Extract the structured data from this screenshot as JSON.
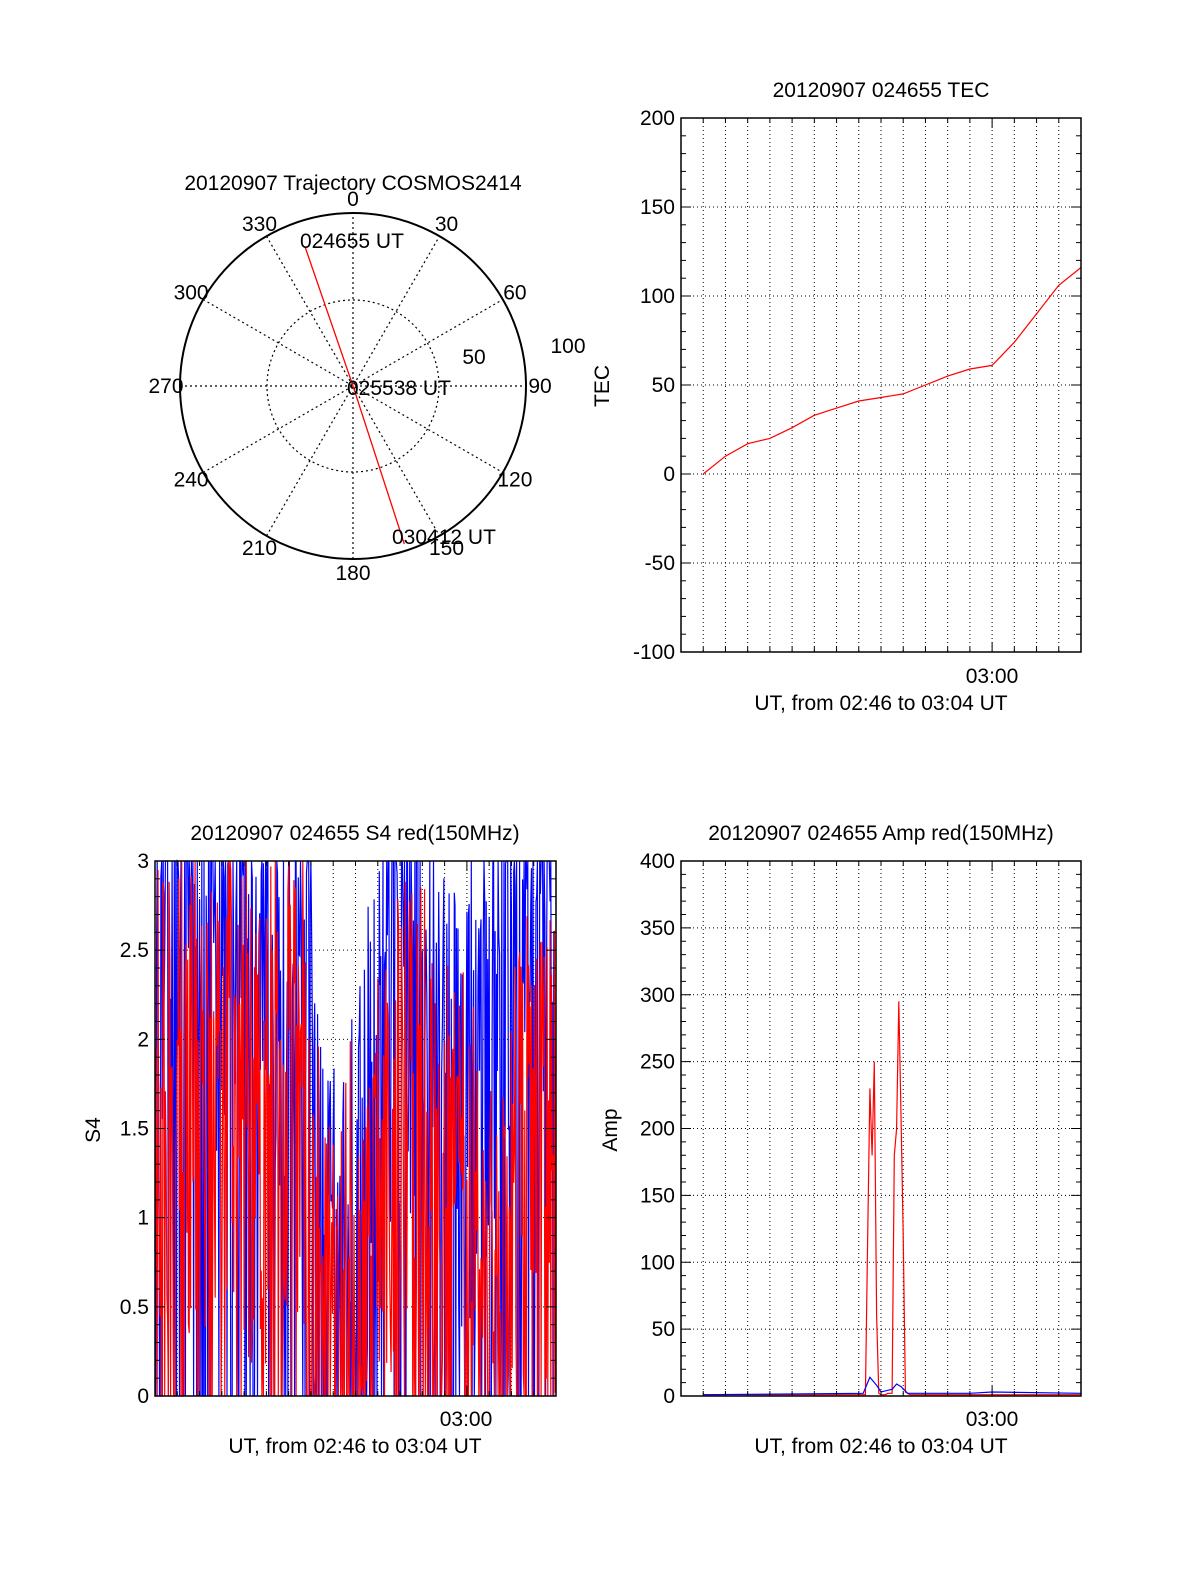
{
  "colors": {
    "red": "#ff0000",
    "blue": "#0000ff",
    "axis": "#000000",
    "grid": "#000000"
  },
  "chart_data": [
    {
      "type": "polar",
      "title": "20120907 Trajectory COSMOS2414",
      "azimuth_labels": [
        "0",
        "30",
        "60",
        "90",
        "120",
        "150",
        "180",
        "210",
        "240",
        "270",
        "300",
        "330"
      ],
      "radial_labels": [
        "50",
        "100"
      ],
      "track": [
        {
          "label": "024655 UT",
          "azimuth": 341,
          "radius": 85
        },
        {
          "label": "025538 UT",
          "azimuth": 0,
          "radius": 0
        },
        {
          "label": "030412 UT",
          "azimuth": 162,
          "radius": 96
        }
      ]
    },
    {
      "type": "line",
      "title": "20120907 024655 TEC",
      "xlabel": "UT, from 02:46 to 03:04 UT",
      "ylabel": "TEC",
      "xlim_minutes_after_0246": [
        0,
        18
      ],
      "x_tick_labels": [
        "03:00"
      ],
      "ylim": [
        -100,
        200
      ],
      "y_ticks": [
        "200",
        "150",
        "100",
        "50",
        "0",
        "-50",
        "-100"
      ],
      "grid": true,
      "series": [
        {
          "color": "red",
          "x": [
            1,
            2,
            3,
            4,
            5,
            6,
            7,
            8,
            9,
            10,
            11,
            12,
            13,
            14,
            15,
            16,
            17,
            18
          ],
          "y": [
            0,
            10,
            17,
            20,
            26,
            33,
            37,
            41,
            43,
            45,
            50,
            55,
            59,
            61,
            74,
            90,
            106,
            116
          ]
        }
      ]
    },
    {
      "type": "line",
      "title": "20120907 024655 S4 red(150MHz)",
      "xlabel": "UT, from 02:46 to 03:04 UT",
      "ylabel": "S4",
      "xlim_minutes_after_0246": [
        0,
        18
      ],
      "x_tick_labels": [
        "03:00"
      ],
      "ylim": [
        0,
        3
      ],
      "y_ticks": [
        "3",
        "2.5",
        "2",
        "1.5",
        "1",
        "0.5",
        "0"
      ],
      "grid": true,
      "series": [
        {
          "color": "blue",
          "x": [
            0,
            1,
            2,
            3,
            4,
            5,
            6,
            7,
            7.5,
            8,
            8.5,
            9,
            10,
            11,
            12,
            13,
            14,
            15,
            16,
            17,
            18
          ],
          "y": [
            2.8,
            2.7,
            2.6,
            2.6,
            2.5,
            2.5,
            2.3,
            1.8,
            0.9,
            0.25,
            0.4,
            0.6,
            1.8,
            2.4,
            2.2,
            1.6,
            1.5,
            2.0,
            2.5,
            2.4,
            2.6
          ]
        },
        {
          "color": "red",
          "x": [
            0,
            1,
            2,
            3,
            4,
            5,
            6,
            7,
            7.5,
            8,
            8.5,
            9,
            10,
            11,
            12,
            13,
            14,
            15,
            16,
            17,
            18
          ],
          "y": [
            1.8,
            1.5,
            1.6,
            1.5,
            1.5,
            1.5,
            1.7,
            1.2,
            0.8,
            0.2,
            0.4,
            0.3,
            0.7,
            1.5,
            1.6,
            1.0,
            0.7,
            0.6,
            0.9,
            1.2,
            1.3
          ]
        }
      ]
    },
    {
      "type": "line",
      "title": "20120907 024655 Amp red(150MHz)",
      "xlabel": "UT, from 02:46 to 03:04 UT",
      "ylabel": "Amp",
      "xlim_minutes_after_0246": [
        0,
        18
      ],
      "x_tick_labels": [
        "03:00"
      ],
      "ylim": [
        0,
        400
      ],
      "y_ticks": [
        "400",
        "350",
        "300",
        "250",
        "200",
        "150",
        "100",
        "50",
        "0"
      ],
      "grid": true,
      "series": [
        {
          "color": "red",
          "x": [
            1,
            8.3,
            8.4,
            8.5,
            8.6,
            8.7,
            8.8,
            8.9,
            9.0,
            9.1,
            9.2,
            9.3,
            9.4,
            9.5,
            9.6,
            9.7,
            9.8,
            9.9,
            10.0,
            10.1,
            10.3,
            18
          ],
          "y": [
            1,
            1,
            120,
            230,
            180,
            250,
            60,
            2,
            1,
            1,
            1,
            2,
            2,
            2,
            180,
            200,
            295,
            210,
            120,
            3,
            1,
            1
          ]
        },
        {
          "color": "blue",
          "x": [
            1,
            8.2,
            8.5,
            8.8,
            9.0,
            9.5,
            9.7,
            9.9,
            10.2,
            13,
            14,
            18
          ],
          "y": [
            1,
            2,
            14,
            8,
            3,
            5,
            9,
            7,
            2,
            2,
            3,
            2
          ]
        }
      ]
    }
  ]
}
